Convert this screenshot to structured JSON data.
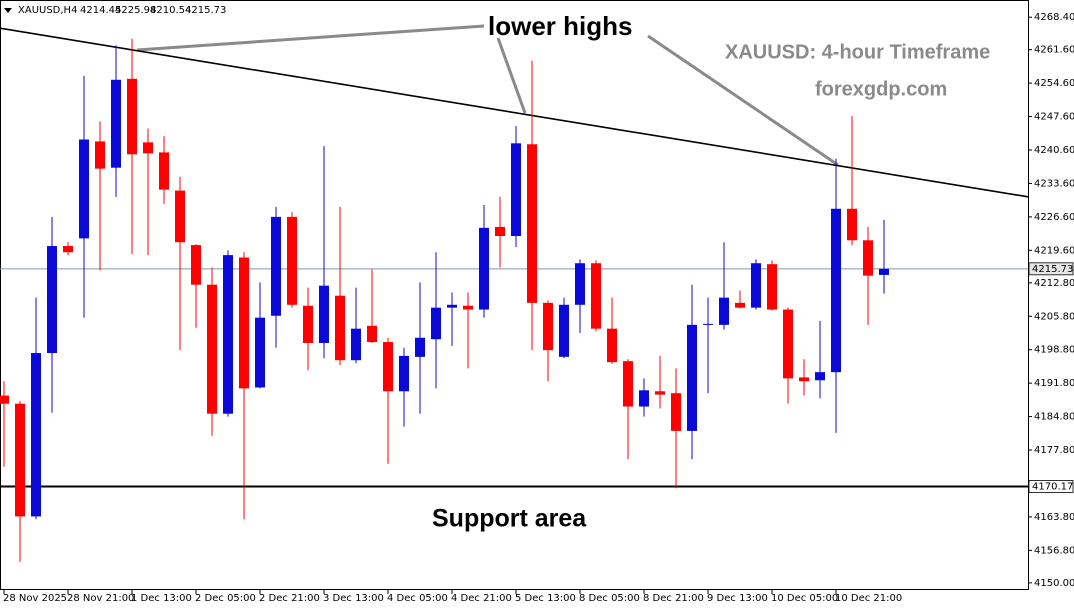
{
  "chart_data": {
    "type": "candlestick",
    "header": {
      "symbol": "XAUUSD,H4",
      "ohlc": [
        4214.45,
        4225.98,
        4210.54,
        4215.73
      ]
    },
    "annotations": {
      "pattern": "lower highs",
      "support": "Support area",
      "timeframe": "XAUUSD: 4-hour Timeframe",
      "site": "forexgdp.com"
    },
    "categories": [
      "28 Nov 2025",
      null,
      null,
      null,
      "28 Nov 21:00",
      null,
      null,
      null,
      "1 Dec 13:00",
      null,
      null,
      null,
      "2 Dec 05:00",
      null,
      null,
      null,
      "2 Dec 21:00",
      null,
      null,
      null,
      "3 Dec 13:00",
      null,
      null,
      null,
      "4 Dec 05:00",
      null,
      null,
      null,
      "4 Dec 21:00",
      null,
      null,
      null,
      "5 Dec 13:00",
      null,
      null,
      null,
      "8 Dec 05:00",
      null,
      null,
      null,
      "8 Dec 21:00",
      null,
      null,
      null,
      "9 Dec 13:00",
      null,
      null,
      null,
      "10 Dec 05:00",
      null,
      null,
      null,
      "10 Dec 21:00",
      null,
      null,
      null
    ],
    "open": [
      4189.2,
      4187.5,
      4163.9,
      4198.1,
      4220.5,
      4222.1,
      4242.4,
      4236.9,
      4255.5,
      4242.2,
      4240.1,
      4232.1,
      4220.7,
      4212.4,
      4185.4,
      4218.1,
      4190.9,
      4205.9,
      4226.6,
      4208.0,
      4200.2,
      4210.1,
      4196.6,
      4203.8,
      4200.4,
      4190.1,
      4197.3,
      4201.0,
      4207.6,
      4208.0,
      4207.2,
      4224.5,
      4222.6,
      4241.8,
      4208.6,
      4197.3,
      4208.2,
      4216.9,
      4203.2,
      4196.4,
      4186.9,
      4190.1,
      4189.7,
      4181.8,
      4204.0,
      4204.0,
      4208.6,
      4207.6,
      4216.7,
      4207.2,
      4193.0,
      4192.4,
      4194.1,
      4228.3,
      4221.7,
      4214.45
    ],
    "high": [
      4192.2,
      4188.0,
      4209.7,
      4226.6,
      4221.3,
      4256.1,
      4246.6,
      4262.5,
      4263.9,
      4245.1,
      4243.5,
      4235.0,
      4220.9,
      4216.0,
      4219.6,
      4219.2,
      4212.9,
      4228.7,
      4227.6,
      4211.8,
      4241.4,
      4228.7,
      4211.8,
      4215.6,
      4201.3,
      4199.2,
      4212.9,
      4219.2,
      4210.8,
      4210.8,
      4229.1,
      4230.8,
      4245.6,
      4259.3,
      4209.1,
      4209.7,
      4217.7,
      4217.5,
      4209.7,
      4196.8,
      4192.8,
      4197.5,
      4194.9,
      4212.4,
      4209.7,
      4221.3,
      4211.2,
      4217.7,
      4217.5,
      4207.6,
      4196.8,
      4204.8,
      4238.8,
      4247.7,
      4224.5,
      4225.98
    ],
    "low": [
      4174.3,
      4154.4,
      4163.3,
      4185.6,
      4218.6,
      4205.5,
      4215.4,
      4230.8,
      4218.8,
      4218.6,
      4229.3,
      4198.7,
      4203.4,
      4180.8,
      4184.8,
      4163.3,
      4190.7,
      4199.2,
      4207.6,
      4194.5,
      4197.0,
      4195.6,
      4196.0,
      4200.2,
      4174.9,
      4182.7,
      4185.4,
      4190.7,
      4199.6,
      4194.9,
      4205.5,
      4216.0,
      4220.3,
      4198.7,
      4192.2,
      4197.0,
      4202.3,
      4202.7,
      4195.8,
      4175.9,
      4184.8,
      4186.5,
      4169.8,
      4175.9,
      4189.7,
      4203.0,
      4207.4,
      4207.2,
      4207.0,
      4187.5,
      4189.2,
      4188.6,
      4181.4,
      4220.7,
      4204.0,
      4210.54
    ],
    "close": [
      4187.5,
      4163.9,
      4198.1,
      4220.5,
      4219.2,
      4242.8,
      4236.7,
      4255.3,
      4239.7,
      4239.9,
      4232.3,
      4221.3,
      4212.4,
      4185.4,
      4218.6,
      4190.7,
      4205.5,
      4226.6,
      4208.2,
      4200.2,
      4212.2,
      4196.6,
      4203.2,
      4200.4,
      4190.1,
      4197.5,
      4201.3,
      4207.6,
      4208.2,
      4207.2,
      4224.3,
      4222.6,
      4242.0,
      4208.6,
      4198.7,
      4208.2,
      4216.9,
      4203.2,
      4196.2,
      4186.9,
      4190.3,
      4189.4,
      4181.8,
      4204.0,
      4204.2,
      4209.7,
      4207.6,
      4216.9,
      4207.2,
      4192.8,
      4192.2,
      4194.1,
      4228.3,
      4221.7,
      4214.3,
      4215.73
    ],
    "up_color": "#0a0ad8",
    "down_color": "#ff0000",
    "current_price": 4215.73,
    "current_price_color": "#7f9aa8",
    "support_level": 4170.17,
    "support_color": "#000000",
    "trendline": {
      "y": [
        4266.1,
        4230.8
      ],
      "color": "#000000"
    },
    "ylim": [
      4148.5,
      4272.0
    ],
    "yticks": [
      {
        "value": 4150,
        "label": "4150.00"
      },
      {
        "value": 4156.8,
        "label": "4156.80"
      },
      {
        "value": 4163.8,
        "label": "4163.80"
      },
      {
        "value": 4177.8,
        "label": "4177.80"
      },
      {
        "value": 4184.8,
        "label": "4184.80"
      },
      {
        "value": 4191.8,
        "label": "4191.80"
      },
      {
        "value": 4198.8,
        "label": "4198.80"
      },
      {
        "value": 4205.8,
        "label": "4205.80"
      },
      {
        "value": 4212.8,
        "label": "4212.80"
      },
      {
        "value": 4219.6,
        "label": "4219.60"
      },
      {
        "value": 4226.6,
        "label": "4226.60"
      },
      {
        "value": 4233.6,
        "label": "4233.60"
      },
      {
        "value": 4240.6,
        "label": "4240.60"
      },
      {
        "value": 4247.6,
        "label": "4247.60"
      },
      {
        "value": 4254.6,
        "label": "4254.60"
      },
      {
        "value": 4261.6,
        "label": "4261.60"
      },
      {
        "value": 4268.4,
        "label": "4268.40"
      }
    ],
    "grid": false
  }
}
